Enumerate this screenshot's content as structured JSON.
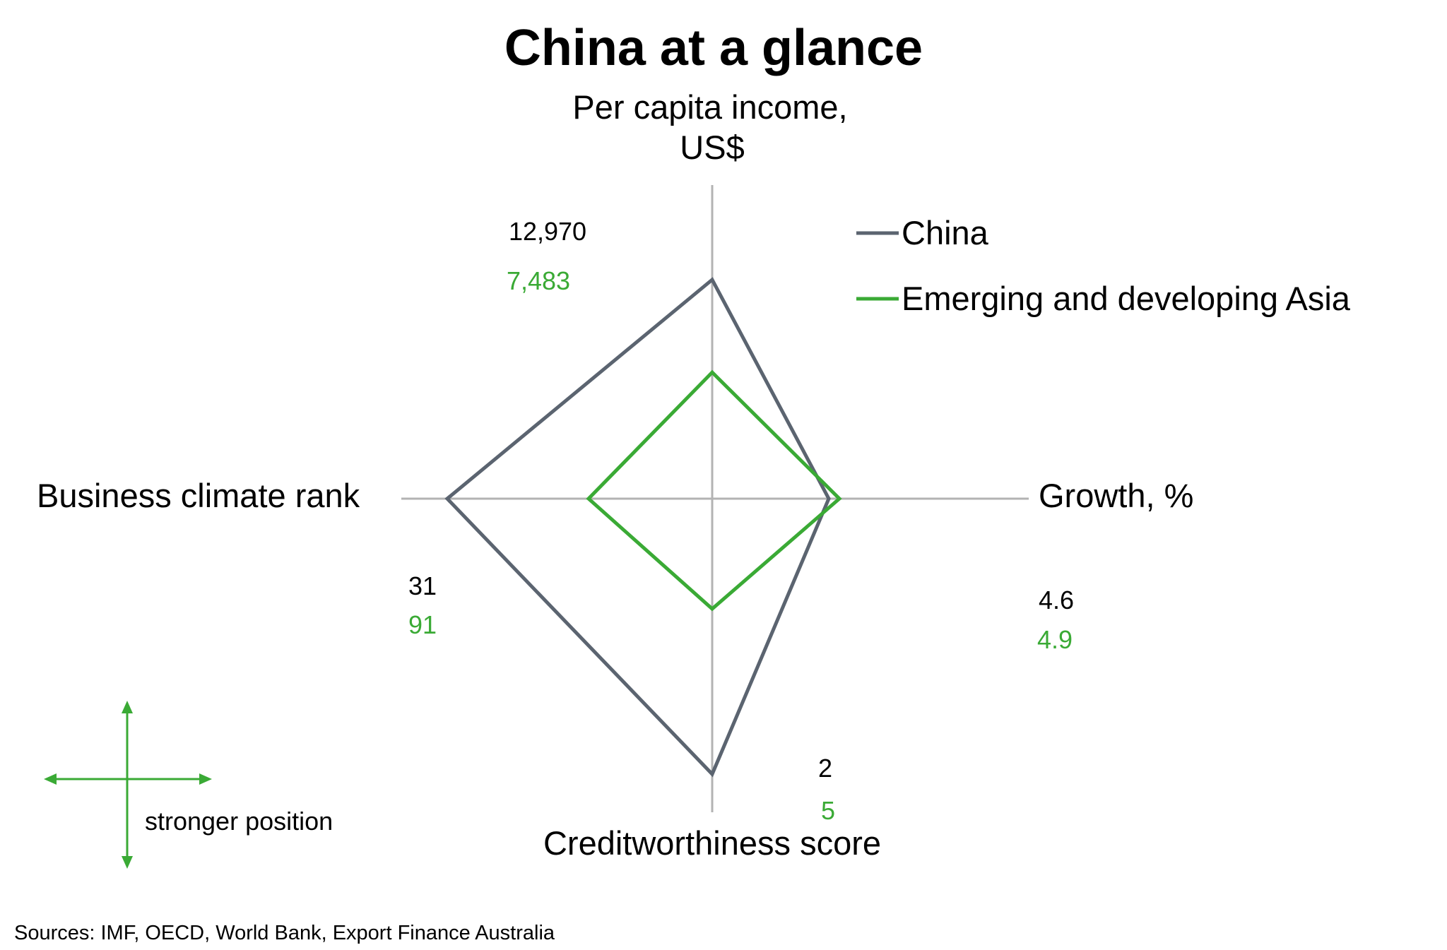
{
  "chart_data": {
    "type": "radar",
    "title": "China at a glance",
    "axes": [
      {
        "name": "Per capita income,",
        "name_line2": "US$",
        "position": "top",
        "values_label": [
          "12,970",
          "7,483"
        ]
      },
      {
        "name": "Growth, %",
        "position": "right",
        "values_label": [
          "4.6",
          "4.9"
        ]
      },
      {
        "name": "Creditworthiness score",
        "position": "bottom",
        "values_label": [
          "2",
          "5"
        ]
      },
      {
        "name": "Business climate rank",
        "position": "left",
        "values_label": [
          "31",
          "91"
        ]
      }
    ],
    "series": [
      {
        "name": "China",
        "color": "#5b6470",
        "values": [
          12970,
          4.6,
          2,
          31
        ]
      },
      {
        "name": "Emerging and developing Asia",
        "color": "#3aaa35",
        "values": [
          7483,
          4.9,
          5,
          91
        ]
      }
    ],
    "legend_position": "top-right",
    "note": "stronger position",
    "source": "Sources: IMF, OECD, World Bank, Export Finance Australia",
    "axis_color": "#b3b3b3",
    "arrow_color": "#3aaa35"
  }
}
